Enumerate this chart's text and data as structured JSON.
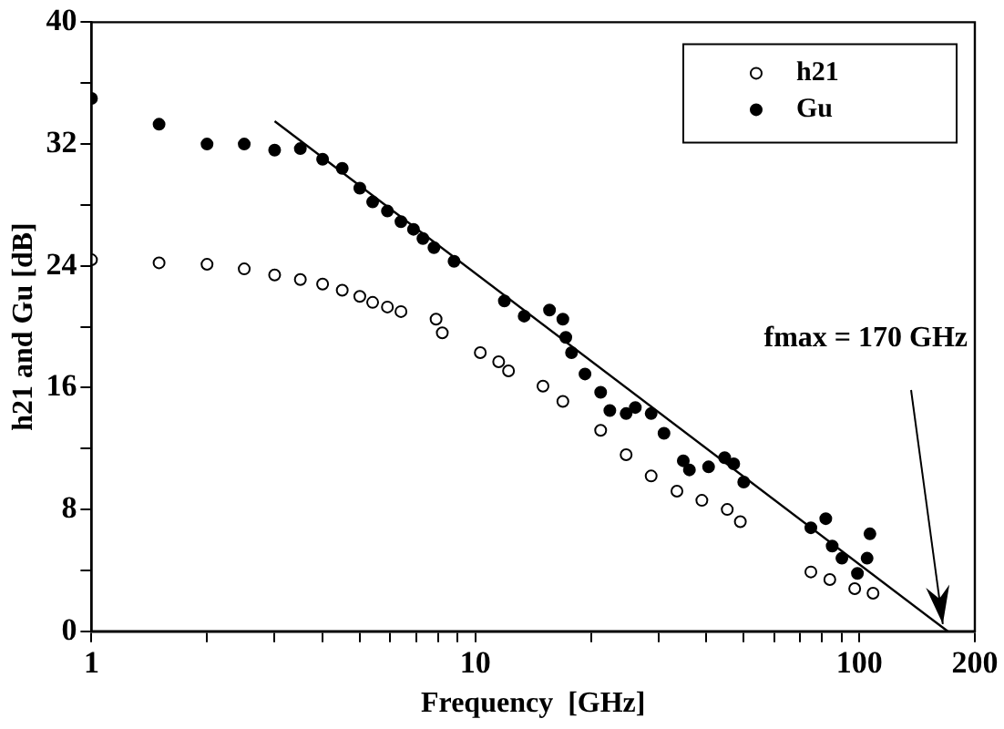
{
  "chart_data": {
    "type": "scatter",
    "xlabel": "Frequency  [GHz]",
    "ylabel": "h21 and Gu [dB]",
    "log": "x",
    "xlim": [
      1,
      200
    ],
    "ylim": [
      0,
      40
    ],
    "xticks": [
      1,
      {
        "value": 2,
        "label": null
      },
      {
        "value": 3,
        "label": null
      },
      {
        "value": 4,
        "label": null
      },
      {
        "value": 5,
        "label": null
      },
      {
        "value": 6,
        "label": null
      },
      {
        "value": 7,
        "label": null
      },
      {
        "value": 8,
        "label": null
      },
      {
        "value": 9,
        "label": null
      },
      10,
      {
        "value": 20,
        "label": null
      },
      {
        "value": 30,
        "label": null
      },
      {
        "value": 40,
        "label": null
      },
      {
        "value": 50,
        "label": null
      },
      {
        "value": 60,
        "label": null
      },
      {
        "value": 70,
        "label": null
      },
      {
        "value": 80,
        "label": null
      },
      {
        "value": 90,
        "label": null
      },
      100,
      200
    ],
    "yticks": [
      0,
      {
        "value": 4,
        "label": null
      },
      8,
      {
        "value": 12,
        "label": null
      },
      16,
      {
        "value": 20,
        "label": null
      },
      24,
      {
        "value": 28,
        "label": null
      },
      32,
      {
        "value": 36,
        "label": null
      },
      40
    ],
    "grid": false,
    "legend": "top right",
    "marker": "circle",
    "series": [
      {
        "name": "h21",
        "color": "#000000",
        "x": [
          1,
          1.5,
          2,
          2.5,
          3,
          3.5,
          4,
          4.5,
          5,
          5.4,
          5.9,
          6.4,
          7.9,
          8.2,
          10.3,
          11.5,
          12.2,
          15,
          16.9,
          21.2,
          24.7,
          28.7,
          33.5,
          38.9,
          45.3,
          49,
          74.8,
          83.8,
          97.3,
          108.6
        ],
        "values": [
          24.4,
          24.2,
          24.1,
          23.8,
          23.4,
          23.1,
          22.8,
          22.4,
          22.0,
          21.6,
          21.3,
          21.0,
          20.5,
          19.6,
          18.3,
          17.7,
          17.1,
          16.1,
          15.1,
          13.2,
          11.6,
          10.2,
          9.2,
          8.6,
          8.0,
          7.2,
          3.9,
          3.4,
          2.8,
          2.5
        ]
      },
      {
        "name": "Gu",
        "color": "#000000",
        "x": [
          1,
          1.5,
          2,
          2.5,
          3,
          3.5,
          4,
          4.5,
          5,
          5.4,
          5.9,
          6.4,
          6.9,
          7.3,
          7.8,
          8.8,
          11.9,
          13.4,
          15.6,
          16.9,
          17.2,
          17.8,
          19.3,
          21.2,
          22.4,
          24.7,
          26.1,
          28.7,
          31,
          34.8,
          36.1,
          40.5,
          44.6,
          47.1,
          50,
          74.8,
          81.8,
          85,
          90.1,
          98.9,
          104.8,
          106.6
        ],
        "values": [
          35.0,
          33.3,
          32.0,
          32.0,
          31.6,
          31.7,
          31.0,
          30.4,
          29.1,
          28.2,
          27.6,
          26.9,
          26.4,
          25.8,
          25.2,
          24.3,
          21.7,
          20.7,
          21.1,
          20.5,
          19.3,
          18.3,
          16.9,
          15.7,
          14.5,
          14.3,
          14.7,
          14.3,
          13.0,
          11.2,
          10.6,
          10.8,
          11.4,
          11.0,
          9.8,
          6.8,
          7.4,
          5.6,
          4.8,
          3.8,
          4.8,
          6.4
        ]
      },
      {
        "type": "line",
        "color": "#000000",
        "marker": "none",
        "x": [
          3,
          170
        ],
        "values": [
          33.5,
          0
        ]
      }
    ],
    "annotations": [
      {
        "text": "fmax = 170 GHz",
        "x": 170,
        "y": 0
      }
    ]
  }
}
